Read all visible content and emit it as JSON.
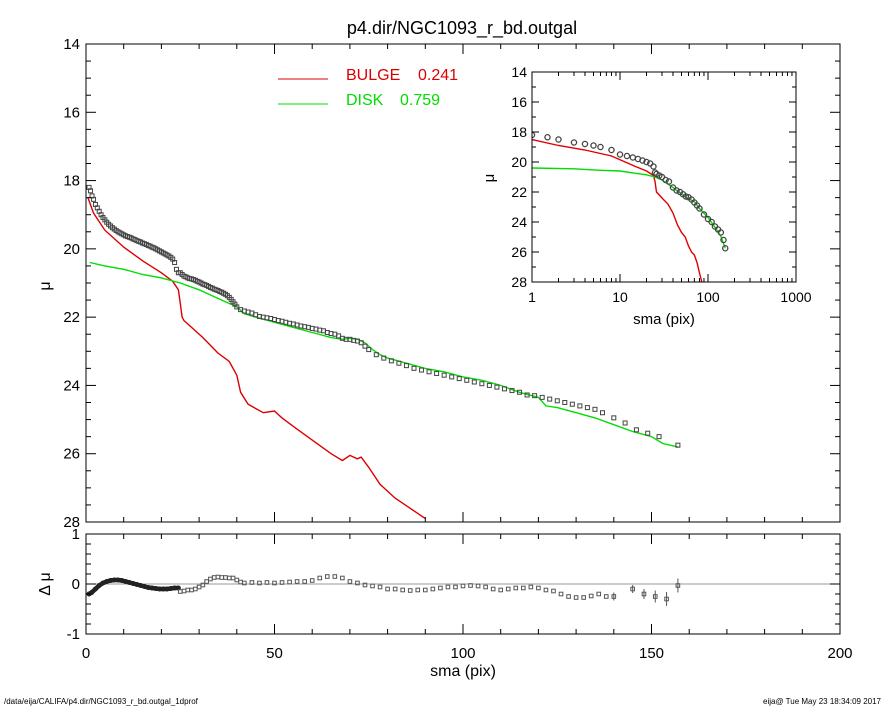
{
  "chart_data": {
    "title": "p4.dir/NGC1093_r_bd.outgal",
    "main": {
      "type": "line",
      "xlim": [
        0,
        200
      ],
      "ylim": [
        28,
        14
      ],
      "xticks": [
        0,
        50,
        100,
        150,
        200
      ],
      "yticks": [
        14,
        16,
        18,
        20,
        22,
        24,
        26,
        28
      ],
      "ylabel": "μ",
      "legend": {
        "placement": "top-center",
        "entries": [
          {
            "name": "BULGE",
            "value": "0.241",
            "color": "#dd0000"
          },
          {
            "name": "DISK",
            "value": "0.759",
            "color": "#00dd00"
          }
        ]
      },
      "data": {
        "x": [
          0.8,
          1.2,
          1.6,
          2.0,
          2.5,
          3.0,
          3.5,
          4.0,
          4.5,
          5.0,
          5.5,
          6.0,
          6.5,
          7.0,
          7.5,
          8.0,
          8.5,
          9.0,
          9.5,
          10.0,
          10.5,
          11.0,
          11.5,
          12.0,
          12.5,
          13.0,
          13.5,
          14.0,
          14.5,
          15.0,
          15.5,
          16.0,
          16.5,
          17.0,
          17.5,
          18.0,
          18.5,
          19.0,
          19.5,
          20.0,
          20.5,
          21.0,
          21.5,
          22.0,
          22.5,
          23.0,
          23.5,
          24.0,
          24.5,
          25.0,
          25.5,
          26.0,
          26.5,
          27.0,
          27.5,
          28.0,
          28.5,
          29.0,
          29.5,
          30.0,
          30.5,
          31.0,
          31.5,
          32.0,
          32.5,
          33.0,
          33.5,
          34.0,
          34.5,
          35.0,
          35.5,
          36.0,
          36.5,
          37.0,
          37.5,
          38.0,
          38.5,
          39.0,
          39.5,
          40.0,
          41,
          42,
          43,
          44,
          45,
          46,
          47,
          48,
          49,
          50,
          51,
          52,
          53,
          54,
          55,
          56,
          57,
          58,
          59,
          60,
          61,
          62,
          63,
          64,
          65,
          66,
          67,
          68,
          69,
          70,
          71,
          72,
          73,
          74,
          75,
          77,
          79,
          81,
          83,
          85,
          87,
          89,
          91,
          93,
          95,
          97,
          99,
          101,
          103,
          105,
          107,
          109,
          111,
          113,
          115,
          117,
          119,
          121,
          123,
          125,
          127,
          129,
          131,
          133,
          135,
          137,
          140,
          143,
          146,
          149,
          152,
          157
        ],
        "y": [
          18.2,
          18.3,
          18.45,
          18.55,
          18.7,
          18.8,
          18.9,
          19.0,
          19.08,
          19.15,
          19.22,
          19.28,
          19.33,
          19.38,
          19.42,
          19.46,
          19.5,
          19.53,
          19.56,
          19.59,
          19.62,
          19.64,
          19.66,
          19.68,
          19.71,
          19.73,
          19.76,
          19.78,
          19.8,
          19.83,
          19.85,
          19.87,
          19.9,
          19.92,
          19.95,
          19.97,
          20.0,
          20.03,
          20.06,
          20.09,
          20.12,
          20.15,
          20.18,
          20.21,
          20.25,
          20.3,
          20.4,
          20.6,
          20.7,
          20.7,
          20.75,
          20.8,
          20.82,
          20.85,
          20.87,
          20.88,
          20.9,
          20.92,
          20.95,
          20.97,
          21.0,
          21.03,
          21.05,
          21.07,
          21.1,
          21.13,
          21.15,
          21.18,
          21.2,
          21.22,
          21.25,
          21.27,
          21.3,
          21.33,
          21.37,
          21.42,
          21.48,
          21.55,
          21.62,
          21.7,
          21.78,
          21.82,
          21.85,
          21.88,
          21.93,
          21.98,
          22.0,
          22.02,
          22.04,
          22.07,
          22.1,
          22.12,
          22.15,
          22.18,
          22.2,
          22.23,
          22.26,
          22.28,
          22.3,
          22.33,
          22.35,
          22.38,
          22.4,
          22.45,
          22.48,
          22.5,
          22.55,
          22.62,
          22.65,
          22.65,
          22.68,
          22.7,
          22.75,
          22.85,
          22.95,
          23.1,
          23.2,
          23.28,
          23.35,
          23.42,
          23.5,
          23.55,
          23.6,
          23.65,
          23.7,
          23.75,
          23.8,
          23.85,
          23.9,
          23.95,
          24.0,
          24.05,
          24.1,
          24.15,
          24.2,
          24.28,
          24.3,
          24.35,
          24.4,
          24.45,
          24.5,
          24.55,
          24.6,
          24.65,
          24.7,
          24.8,
          24.95,
          25.1,
          25.3,
          25.4,
          25.5,
          25.75
        ]
      },
      "bulge": {
        "x": [
          0.5,
          2,
          5,
          10,
          15,
          20,
          23,
          24.5,
          25,
          25.5,
          26,
          28,
          31,
          35,
          38,
          40,
          41,
          43,
          47,
          50,
          52,
          55,
          60,
          65,
          68,
          70,
          72,
          73,
          75,
          78,
          82,
          86,
          90
        ],
        "y": [
          18.5,
          18.95,
          19.45,
          19.95,
          20.35,
          20.7,
          20.95,
          21.2,
          21.6,
          22.0,
          22.1,
          22.3,
          22.6,
          23.05,
          23.3,
          23.7,
          24.2,
          24.55,
          24.8,
          24.75,
          24.95,
          25.2,
          25.6,
          26.0,
          26.2,
          26.05,
          26.15,
          26.1,
          26.4,
          26.9,
          27.3,
          27.6,
          27.9
        ]
      },
      "disk": {
        "x": [
          1,
          5,
          10,
          15,
          20,
          25,
          30,
          35,
          40,
          42,
          45,
          50,
          55,
          60,
          65,
          68,
          70,
          72,
          74,
          76,
          78,
          80,
          85,
          90,
          95,
          100,
          105,
          110,
          115,
          120,
          122,
          125,
          130,
          135,
          140,
          145,
          150,
          153,
          157
        ],
        "y": [
          20.4,
          20.5,
          20.6,
          20.75,
          20.85,
          21.0,
          21.2,
          21.45,
          21.7,
          21.9,
          22.0,
          22.15,
          22.3,
          22.45,
          22.6,
          22.65,
          22.62,
          22.65,
          22.75,
          22.95,
          23.1,
          23.2,
          23.35,
          23.5,
          23.6,
          23.75,
          23.85,
          24.0,
          24.2,
          24.35,
          24.6,
          24.65,
          24.8,
          24.95,
          25.15,
          25.35,
          25.5,
          25.7,
          25.8
        ]
      }
    },
    "inset": {
      "type": "line",
      "xscale": "log",
      "xlim": [
        1,
        1000
      ],
      "ylim": [
        28,
        14
      ],
      "xticks": [
        1,
        10,
        100,
        1000
      ],
      "xticklabels": [
        "1",
        "10",
        "100",
        "1000"
      ],
      "yticks": [
        14,
        16,
        18,
        20,
        22,
        24,
        26,
        28
      ],
      "xlabel": "sma (pix)",
      "ylabel": "μ",
      "bulge": {
        "x": [
          1,
          2,
          4,
          8,
          15,
          20,
          24,
          25,
          26,
          30,
          35,
          40,
          45,
          50,
          55,
          60,
          65,
          70,
          75,
          80,
          85
        ],
        "y": [
          18.5,
          18.9,
          19.2,
          19.6,
          20.3,
          20.6,
          20.9,
          21.3,
          22.0,
          22.4,
          22.8,
          23.4,
          24.2,
          24.7,
          25.0,
          25.6,
          26.0,
          26.2,
          26.7,
          27.4,
          28.0
        ]
      },
      "disk": {
        "x": [
          1,
          3,
          6,
          10,
          15,
          20,
          25,
          30,
          40,
          50,
          60,
          70,
          80,
          100,
          120,
          140,
          157
        ],
        "y": [
          20.4,
          20.45,
          20.55,
          20.6,
          20.75,
          20.85,
          21.0,
          21.2,
          21.7,
          22.15,
          22.45,
          22.65,
          23.1,
          23.7,
          24.35,
          24.95,
          25.75
        ]
      },
      "data": {
        "x": [
          1,
          1.5,
          2,
          3,
          4,
          5,
          6,
          8,
          10,
          12,
          14,
          16,
          18,
          20,
          22,
          24,
          25,
          26,
          28,
          30,
          33,
          36,
          40,
          44,
          48,
          52,
          56,
          60,
          65,
          70,
          75,
          80,
          90,
          100,
          110,
          120,
          130,
          140,
          150,
          157
        ],
        "y": [
          18.2,
          18.35,
          18.5,
          18.7,
          18.8,
          18.9,
          19.0,
          19.2,
          19.5,
          19.6,
          19.7,
          19.8,
          19.9,
          20.0,
          20.1,
          20.3,
          20.7,
          20.8,
          20.9,
          21.0,
          21.2,
          21.3,
          21.7,
          21.9,
          22.0,
          22.15,
          22.3,
          22.35,
          22.5,
          22.7,
          22.9,
          23.1,
          23.5,
          23.8,
          24.0,
          24.3,
          24.5,
          24.7,
          25.2,
          25.75
        ]
      }
    },
    "residual": {
      "type": "scatter",
      "xlim": [
        0,
        200
      ],
      "ylim": [
        -1,
        1
      ],
      "xticks": [
        0,
        50,
        100,
        150,
        200
      ],
      "yticks": [
        -1,
        0,
        1
      ],
      "xlabel": "sma (pix)",
      "ylabel": "Δ μ",
      "dense": {
        "x": [
          0.8,
          1.5,
          2.5,
          3.5,
          4.5,
          5.5,
          6.5,
          7.5,
          8.5,
          9.5,
          10.5,
          11.5,
          12.5,
          13.5,
          14.5,
          15.5,
          16.5,
          17.5,
          18.5,
          19.5,
          20.5,
          21.5,
          22.5,
          23.5,
          24.5
        ],
        "y": [
          -0.2,
          -0.17,
          -0.1,
          -0.03,
          0.02,
          0.05,
          0.07,
          0.08,
          0.08,
          0.07,
          0.05,
          0.03,
          0.01,
          -0.01,
          -0.03,
          -0.05,
          -0.07,
          -0.08,
          -0.09,
          -0.1,
          -0.1,
          -0.1,
          -0.09,
          -0.08,
          -0.08
        ]
      },
      "sparse": {
        "x": [
          25,
          26,
          27,
          28,
          29,
          30,
          31,
          32,
          33,
          34,
          35,
          36,
          37,
          38,
          39,
          40,
          41,
          42,
          44,
          46,
          48,
          50,
          52,
          54,
          56,
          58,
          60,
          62,
          64,
          66,
          68,
          70,
          72,
          74,
          76,
          78,
          80,
          82,
          84,
          86,
          88,
          90,
          92,
          94,
          96,
          98,
          100,
          102,
          104,
          106,
          108,
          110,
          112,
          114,
          116,
          118,
          120,
          122,
          124,
          126,
          128,
          130,
          132,
          134,
          136,
          138,
          140,
          145,
          148,
          151,
          154,
          157
        ],
        "y": [
          -0.15,
          -0.14,
          -0.12,
          -0.12,
          -0.1,
          -0.06,
          -0.02,
          0.05,
          0.1,
          0.13,
          0.14,
          0.13,
          0.13,
          0.12,
          0.12,
          0.08,
          0.04,
          0.02,
          0.03,
          0.02,
          0.03,
          0.02,
          0.03,
          0.04,
          0.05,
          0.05,
          0.07,
          0.12,
          0.15,
          0.15,
          0.12,
          0.05,
          0.02,
          -0.02,
          -0.04,
          -0.06,
          -0.1,
          -0.1,
          -0.12,
          -0.13,
          -0.12,
          -0.12,
          -0.1,
          -0.08,
          -0.06,
          -0.06,
          -0.04,
          -0.03,
          -0.04,
          -0.06,
          -0.1,
          -0.12,
          -0.1,
          -0.08,
          -0.08,
          -0.06,
          -0.08,
          -0.12,
          -0.14,
          -0.2,
          -0.25,
          -0.27,
          -0.27,
          -0.24,
          -0.2,
          -0.25,
          -0.25,
          -0.1,
          -0.2,
          -0.25,
          -0.3,
          -0.03
        ],
        "err": [
          0,
          0,
          0,
          0,
          0,
          0,
          0,
          0,
          0,
          0,
          0,
          0,
          0,
          0,
          0,
          0,
          0,
          0,
          0,
          0,
          0,
          0,
          0,
          0,
          0,
          0,
          0,
          0,
          0,
          0,
          0,
          0,
          0,
          0,
          0,
          0,
          0,
          0,
          0,
          0,
          0,
          0,
          0,
          0,
          0,
          0,
          0,
          0,
          0,
          0,
          0,
          0,
          0,
          0,
          0,
          0,
          0,
          0,
          0,
          0,
          0,
          0,
          0,
          0,
          0,
          0,
          0.08,
          0.08,
          0.1,
          0.12,
          0.14,
          0.14
        ]
      }
    }
  },
  "footer": {
    "left": "/data/eija/CALIFA/p4.dir/NGC1093_r_bd.outgal_1dprof",
    "right": "eija@  Tue May 23 18:34:09 2017"
  }
}
